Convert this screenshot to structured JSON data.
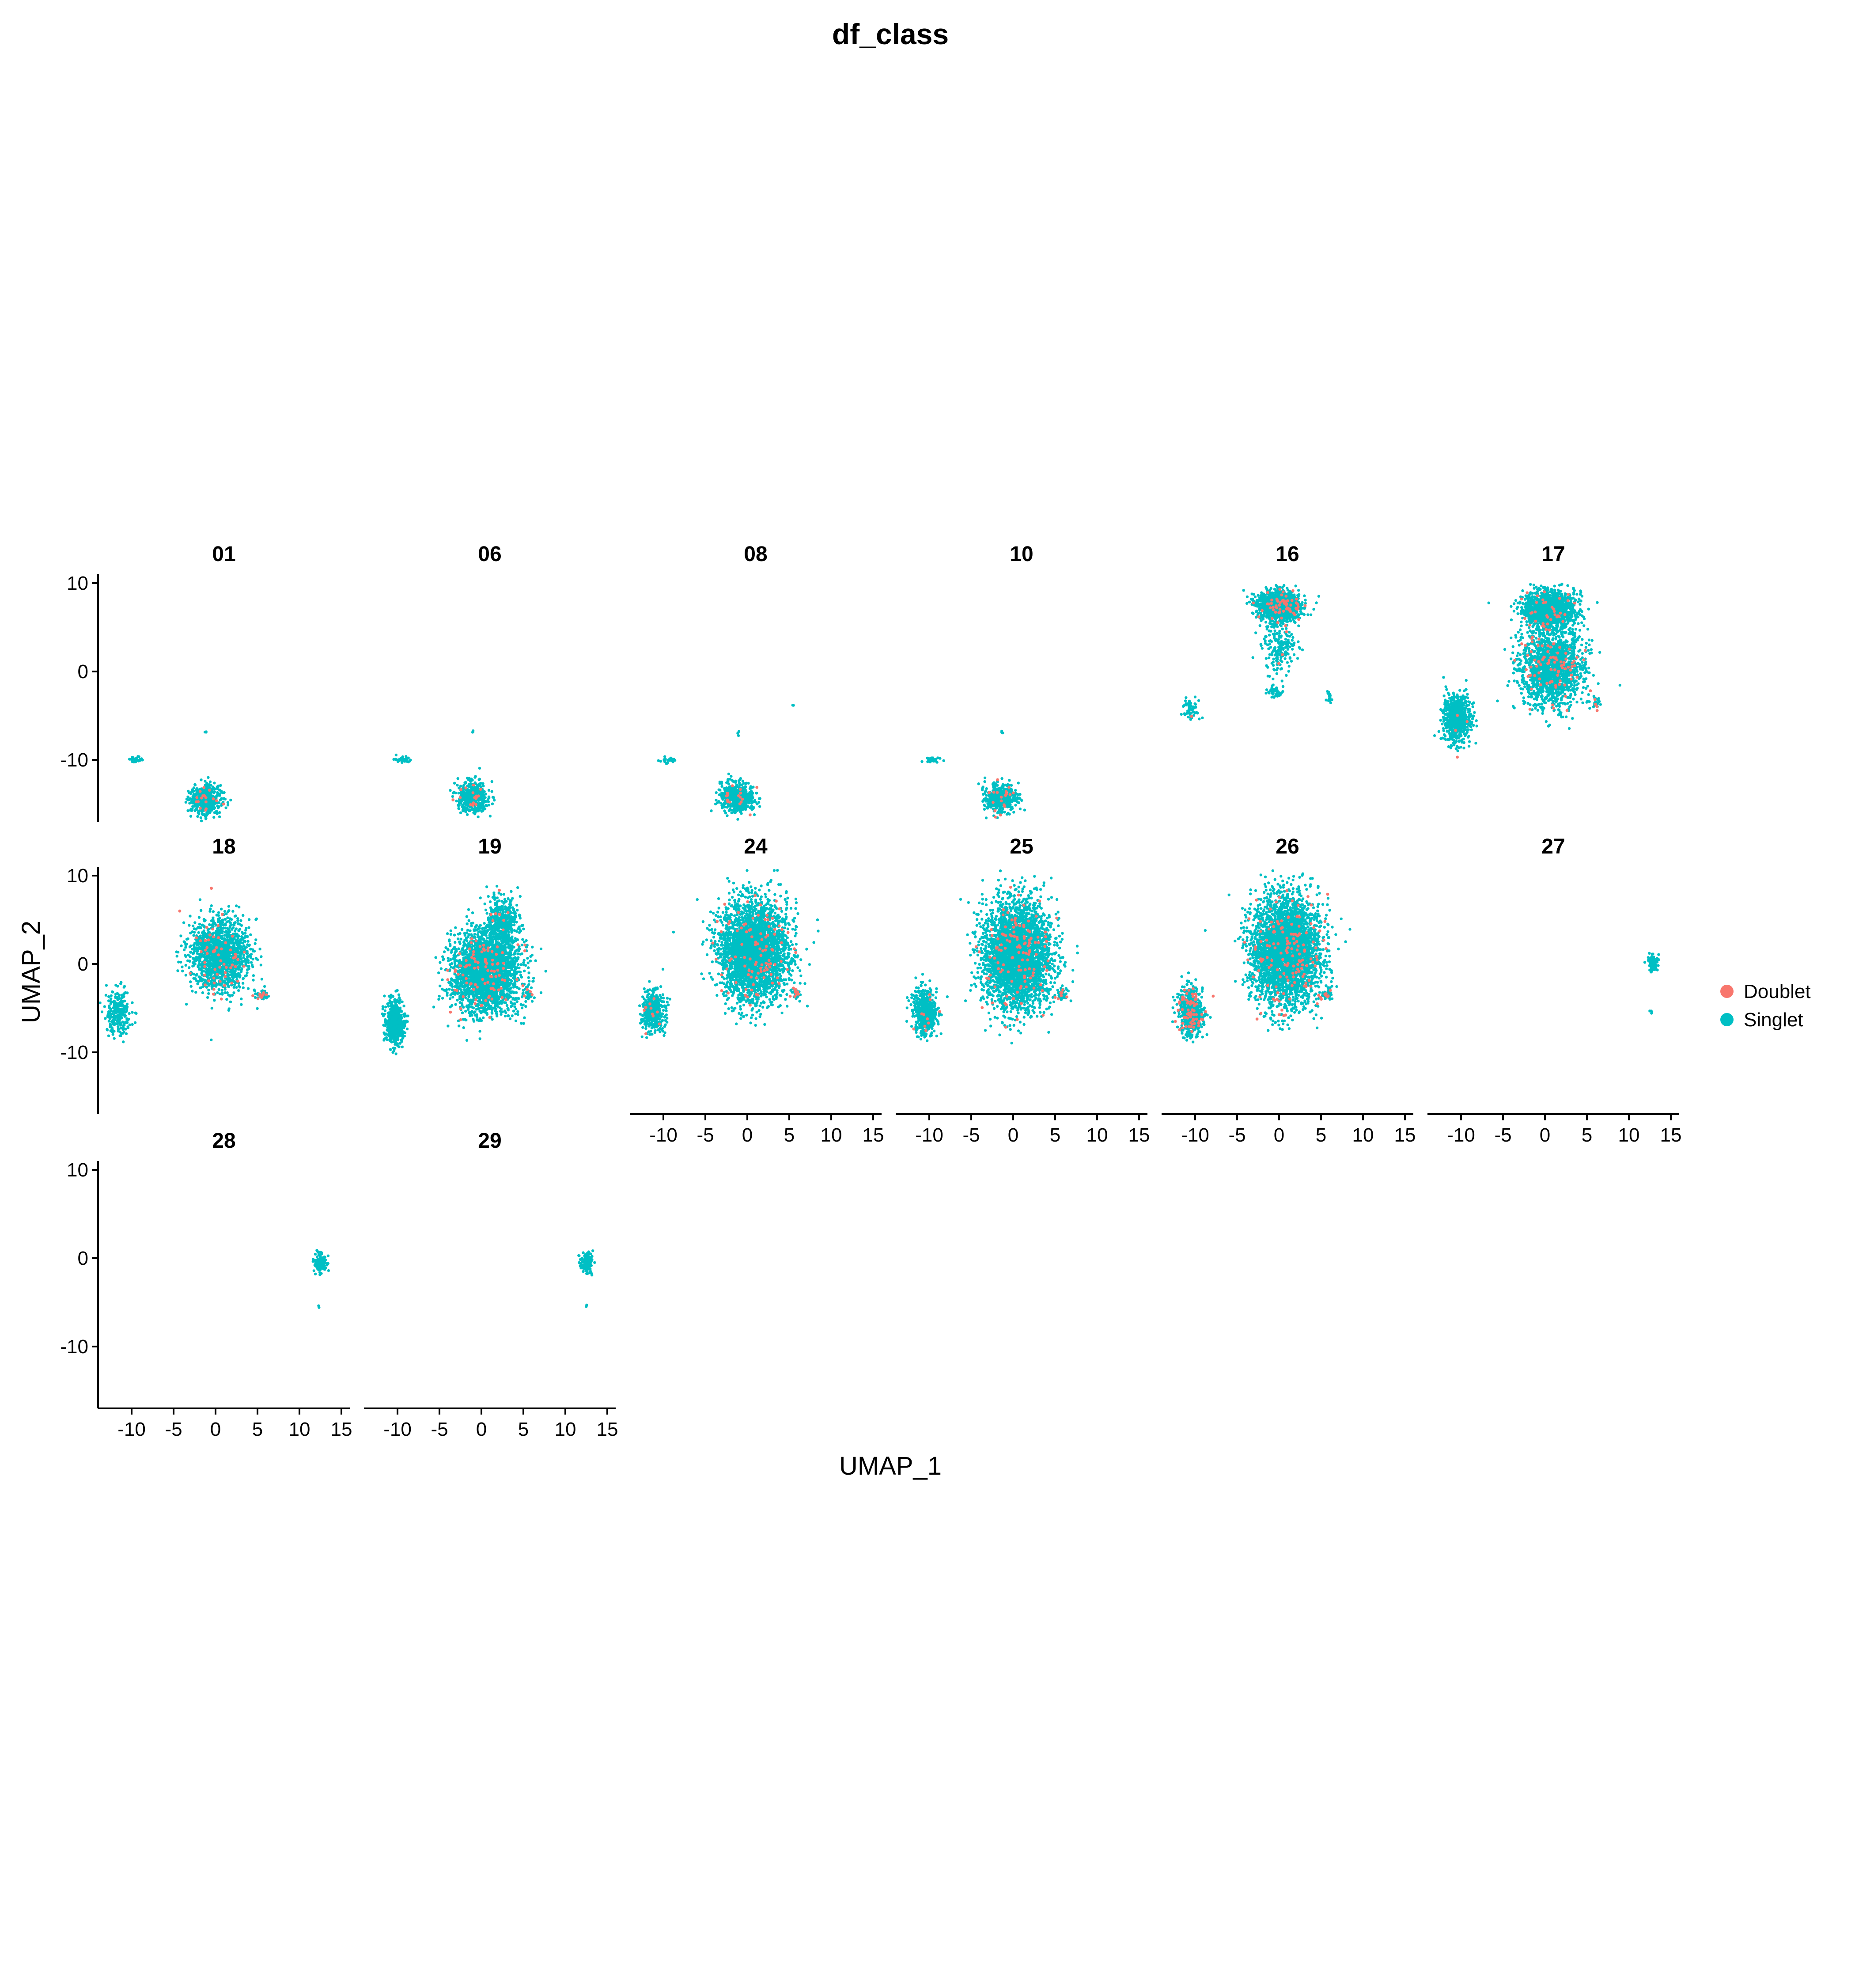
{
  "colors": {
    "Doublet": "#F8766D",
    "Singlet": "#00BFC4",
    "axis": "#000000"
  },
  "chart_data": {
    "type": "scatter",
    "title": "df_class",
    "xlabel": "UMAP_1",
    "ylabel": "UMAP_2",
    "xlim": [
      -14,
      16
    ],
    "ylim": [
      -17,
      11
    ],
    "x_ticks": [
      -10,
      -5,
      0,
      5,
      10,
      15
    ],
    "y_ticks": [
      -10,
      0,
      10
    ],
    "x_tick_labels": [
      "-10",
      "-5",
      "0",
      "5",
      "10",
      "15"
    ],
    "y_tick_labels": [
      "-10",
      "0",
      "10"
    ],
    "legend": {
      "position": "right",
      "entries": [
        "Doublet",
        "Singlet"
      ]
    },
    "facets": [
      {
        "label": "01",
        "clusters": [
          {
            "cx": -9.5,
            "cy": -10,
            "rx": 1.0,
            "ry": 0.35,
            "n": 30,
            "doublet": 0
          },
          {
            "cx": -1.2,
            "cy": -6.8,
            "rx": 0.2,
            "ry": 0.3,
            "n": 3,
            "doublet": 0
          },
          {
            "cx": -1.2,
            "cy": -14.5,
            "rx": 1.8,
            "ry": 1.6,
            "n": 520,
            "doublet": 0.02
          }
        ]
      },
      {
        "label": "06",
        "clusters": [
          {
            "cx": -9.5,
            "cy": -10,
            "rx": 1.0,
            "ry": 0.35,
            "n": 30,
            "doublet": 0
          },
          {
            "cx": -1.0,
            "cy": -6.8,
            "rx": 0.2,
            "ry": 0.3,
            "n": 3,
            "doublet": 0
          },
          {
            "cx": -1.0,
            "cy": -14.2,
            "rx": 1.8,
            "ry": 1.7,
            "n": 500,
            "doublet": 0.02
          }
        ]
      },
      {
        "label": "08",
        "clusters": [
          {
            "cx": -9.5,
            "cy": -10,
            "rx": 1.0,
            "ry": 0.35,
            "n": 30,
            "doublet": 0
          },
          {
            "cx": -1.2,
            "cy": -7,
            "rx": 0.2,
            "ry": 0.3,
            "n": 3,
            "doublet": 0
          },
          {
            "cx": 5.5,
            "cy": -3.8,
            "rx": 0.1,
            "ry": 0.1,
            "n": 2,
            "doublet": 0
          },
          {
            "cx": -1.2,
            "cy": -14.3,
            "rx": 2.0,
            "ry": 1.7,
            "n": 560,
            "doublet": 0.02
          }
        ]
      },
      {
        "label": "10",
        "clusters": [
          {
            "cx": -9.5,
            "cy": -10,
            "rx": 1.0,
            "ry": 0.35,
            "n": 30,
            "doublet": 0
          },
          {
            "cx": -1.2,
            "cy": -7,
            "rx": 0.2,
            "ry": 0.3,
            "n": 3,
            "doublet": 0
          },
          {
            "cx": -1.5,
            "cy": -14.3,
            "rx": 1.8,
            "ry": 1.6,
            "n": 480,
            "doublet": 0.03
          }
        ]
      },
      {
        "label": "16",
        "clusters": [
          {
            "cx": 0,
            "cy": 7.5,
            "rx": 2.5,
            "ry": 1.6,
            "n": 1300,
            "doublet": 0.04
          },
          {
            "cx": 0,
            "cy": 3,
            "rx": 2.0,
            "ry": 3.0,
            "n": 200,
            "doublet": 0.02
          },
          {
            "cx": -0.5,
            "cy": -2.3,
            "rx": 1.0,
            "ry": 0.6,
            "n": 50,
            "doublet": 0
          },
          {
            "cx": -10.5,
            "cy": -4,
            "rx": 1.0,
            "ry": 1.2,
            "n": 60,
            "doublet": 0.02
          },
          {
            "cx": 6,
            "cy": -3,
            "rx": 0.3,
            "ry": 0.5,
            "n": 20,
            "doublet": 0
          }
        ]
      },
      {
        "label": "17",
        "clusters": [
          {
            "cx": 0.5,
            "cy": 7,
            "rx": 3.0,
            "ry": 2.0,
            "n": 1400,
            "doublet": 0.03
          },
          {
            "cx": 0.8,
            "cy": 0.5,
            "rx": 3.8,
            "ry": 4.5,
            "n": 1600,
            "doublet": 0.05
          },
          {
            "cx": -10.5,
            "cy": -5.3,
            "rx": 1.6,
            "ry": 2.6,
            "n": 700,
            "doublet": 0.01
          },
          {
            "cx": 6.2,
            "cy": -3.5,
            "rx": 0.5,
            "ry": 0.6,
            "n": 30,
            "doublet": 0.2
          }
        ]
      },
      {
        "label": "18",
        "clusters": [
          {
            "cx": 0.5,
            "cy": 1,
            "rx": 3.5,
            "ry": 4.0,
            "n": 1500,
            "doublet": 0.03
          },
          {
            "cx": -11.5,
            "cy": -5.5,
            "rx": 1.5,
            "ry": 2.5,
            "n": 250,
            "doublet": 0
          },
          {
            "cx": 5.5,
            "cy": -3.5,
            "rx": 0.8,
            "ry": 0.5,
            "n": 40,
            "doublet": 0.3
          }
        ]
      },
      {
        "label": "19",
        "clusters": [
          {
            "cx": 0.5,
            "cy": -1,
            "rx": 4.0,
            "ry": 4.5,
            "n": 2600,
            "doublet": 0.03
          },
          {
            "cx": 2.5,
            "cy": 4.5,
            "rx": 1.8,
            "ry": 3.0,
            "n": 500,
            "doublet": 0.01
          },
          {
            "cx": -10.3,
            "cy": -6.5,
            "rx": 1.2,
            "ry": 2.5,
            "n": 500,
            "doublet": 0
          },
          {
            "cx": 5.5,
            "cy": -3.5,
            "rx": 0.6,
            "ry": 0.5,
            "n": 30,
            "doublet": 0.2
          }
        ]
      },
      {
        "label": "24",
        "clusters": [
          {
            "cx": 0.8,
            "cy": 1.5,
            "rx": 4.0,
            "ry": 5.5,
            "n": 3200,
            "doublet": 0.03
          },
          {
            "cx": -11.2,
            "cy": -5.3,
            "rx": 1.2,
            "ry": 2.2,
            "n": 450,
            "doublet": 0.02
          },
          {
            "cx": 5.8,
            "cy": -3.3,
            "rx": 0.5,
            "ry": 0.6,
            "n": 40,
            "doublet": 0.2
          }
        ]
      },
      {
        "label": "25",
        "clusters": [
          {
            "cx": 0.5,
            "cy": 1,
            "rx": 4.0,
            "ry": 6.0,
            "n": 3400,
            "doublet": 0.03
          },
          {
            "cx": -10.5,
            "cy": -5.3,
            "rx": 1.4,
            "ry": 2.5,
            "n": 500,
            "doublet": 0.02
          },
          {
            "cx": 5.8,
            "cy": -3.5,
            "rx": 0.6,
            "ry": 0.6,
            "n": 40,
            "doublet": 0.1
          }
        ]
      },
      {
        "label": "26",
        "clusters": [
          {
            "cx": 0.8,
            "cy": 1.5,
            "rx": 4.0,
            "ry": 6.0,
            "n": 3600,
            "doublet": 0.04
          },
          {
            "cx": -10.5,
            "cy": -5.3,
            "rx": 1.4,
            "ry": 2.6,
            "n": 600,
            "doublet": 0.12
          },
          {
            "cx": 5.5,
            "cy": -3.5,
            "rx": 0.8,
            "ry": 0.6,
            "n": 50,
            "doublet": 0.2
          }
        ]
      },
      {
        "label": "27",
        "clusters": [
          {
            "cx": 12.8,
            "cy": 0,
            "rx": 0.6,
            "ry": 1.0,
            "n": 90,
            "doublet": 0
          },
          {
            "cx": 12.6,
            "cy": -5.5,
            "rx": 0.2,
            "ry": 0.3,
            "n": 4,
            "doublet": 0
          }
        ]
      },
      {
        "label": "28",
        "clusters": [
          {
            "cx": 12.5,
            "cy": -0.5,
            "rx": 0.7,
            "ry": 1.0,
            "n": 120,
            "doublet": 0
          },
          {
            "cx": 12.3,
            "cy": -5.5,
            "rx": 0.1,
            "ry": 0.2,
            "n": 2,
            "doublet": 0
          }
        ]
      },
      {
        "label": "29",
        "clusters": [
          {
            "cx": 12.5,
            "cy": -0.5,
            "rx": 0.8,
            "ry": 1.1,
            "n": 130,
            "doublet": 0
          },
          {
            "cx": 12.5,
            "cy": -5.5,
            "rx": 0.1,
            "ry": 0.2,
            "n": 2,
            "doublet": 0
          }
        ]
      }
    ]
  }
}
